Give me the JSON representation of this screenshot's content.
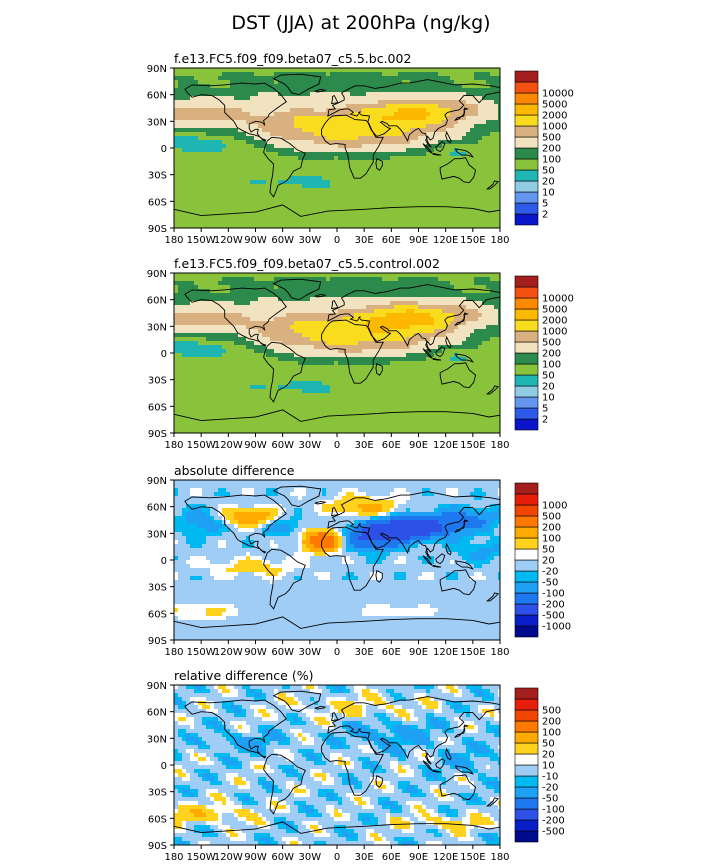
{
  "chart_data": {
    "type": "map",
    "title": "DST (JJA) at 200hPa (ng/kg)",
    "lat_ticks": [
      "90N",
      "60N",
      "30N",
      "0",
      "30S",
      "60S",
      "90S"
    ],
    "lon_ticks": [
      "180",
      "150W",
      "120W",
      "90W",
      "60W",
      "30W",
      "0",
      "30E",
      "60E",
      "90E",
      "120E",
      "150E",
      "180"
    ],
    "panels": [
      {
        "id": "bc",
        "subtitle": "f.e13.FC5.f09_f09.beta07_c5.5.bc.002",
        "scheme": "abs",
        "colorbar": {
          "colors": [
            "#0a14c8",
            "#2d5ae6",
            "#6496ef",
            "#8fcbe3",
            "#1fb5b3",
            "#88c33b",
            "#2c8a4d",
            "#f2e3c0",
            "#d9b180",
            "#fadc1e",
            "#fdb800",
            "#fc8800",
            "#f45012",
            "#a51e1e"
          ],
          "labels": [
            "2",
            "5",
            "10",
            "20",
            "50",
            "100",
            "200",
            "500",
            "1000",
            "2000",
            "5000",
            "10000"
          ]
        }
      },
      {
        "id": "control",
        "subtitle": "f.e13.FC5.f09_f09.beta07_c5.5.control.002",
        "scheme": "abs",
        "colorbar": {
          "colors": [
            "#0a14c8",
            "#2d5ae6",
            "#6496ef",
            "#8fcbe3",
            "#1fb5b3",
            "#88c33b",
            "#2c8a4d",
            "#f2e3c0",
            "#d9b180",
            "#fadc1e",
            "#fdb800",
            "#fc8800",
            "#f45012",
            "#a51e1e"
          ],
          "labels": [
            "2",
            "5",
            "10",
            "20",
            "50",
            "100",
            "200",
            "500",
            "1000",
            "2000",
            "5000",
            "10000"
          ]
        }
      },
      {
        "id": "absdiff",
        "subtitle": "absolute difference",
        "scheme": "diff",
        "colorbar": {
          "colors": [
            "#000a8c",
            "#0a1ec8",
            "#2d50e6",
            "#1e78f0",
            "#1ea0f5",
            "#00b9f0",
            "#a0cdf5",
            "#ffffff",
            "#ffd21e",
            "#ffaa00",
            "#ff7800",
            "#f04600",
            "#e61e0a",
            "#a51e1e"
          ],
          "labels": [
            "-1000",
            "-500",
            "-200",
            "-100",
            "-50",
            "-20",
            "20",
            "50",
            "100",
            "200",
            "500",
            "1000"
          ]
        }
      },
      {
        "id": "reldiff",
        "subtitle": "relative difference (%)",
        "scheme": "rel",
        "colorbar": {
          "colors": [
            "#000a8c",
            "#0a1ec8",
            "#2d50e6",
            "#1e78f0",
            "#1ea0f5",
            "#00b9f0",
            "#a0cdf5",
            "#ffffff",
            "#ffd21e",
            "#ffaa00",
            "#ff7800",
            "#f04600",
            "#e61e0a",
            "#a51e1e"
          ],
          "labels": [
            "-500",
            "-200",
            "-100",
            "-50",
            "-20",
            "-10",
            "10",
            "20",
            "50",
            "100",
            "200",
            "500"
          ]
        }
      }
    ]
  }
}
